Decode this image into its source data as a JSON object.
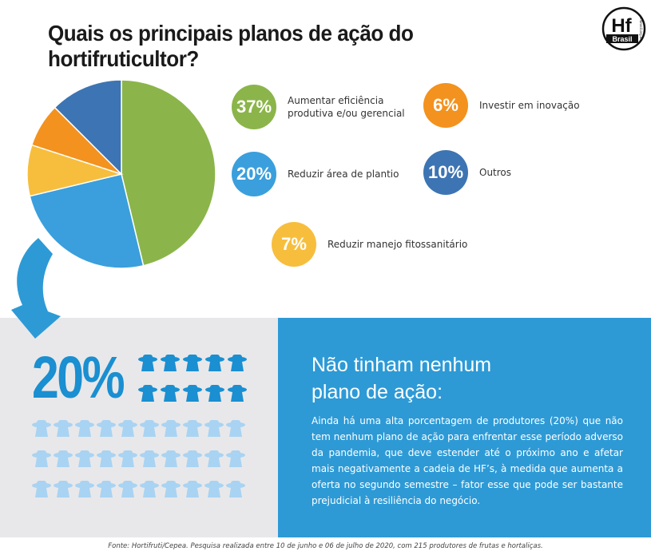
{
  "title": "Quais os principais planos de ação do hortifruticultor?",
  "logo": {
    "main": "Hf",
    "sub": "Brasil",
    "site": "hfbrasil.org.br"
  },
  "chart_data": {
    "type": "pie",
    "slices": [
      {
        "label": "Aumentar eficiência produtiva e/ou gerencial",
        "value": 37,
        "display": "37%",
        "color": "#8bb54a"
      },
      {
        "label": "Reduzir área de plantio",
        "value": 20,
        "display": "20%",
        "color": "#3a9fdc"
      },
      {
        "label": "Reduzir manejo fitossanitário",
        "value": 7,
        "display": "7%",
        "color": "#f7be3d"
      },
      {
        "label": "Investir em inovação",
        "value": 6,
        "display": "6%",
        "color": "#f3921e"
      },
      {
        "label": "Outros",
        "value": 10,
        "display": "10%",
        "color": "#3d74b3"
      }
    ]
  },
  "highlight": {
    "value": "20%",
    "heading_line1": "Não tinham nenhum",
    "heading_line2": "plano de ação:",
    "body": "Ainda há uma alta porcentagem de produtores (20%) que não tem nenhum plano de ação para enfrentar esse período adverso da pandemia, que deve estender até o próximo ano e afetar mais negativamente a cadeia de HF’s, à medida que aumenta a oferta no segundo semestre – fator esse que pode ser bastante prejudicial à resiliência do negócio.",
    "icons_total": 50,
    "icons_highlighted": 10,
    "icon_highlight_color": "#1a8fd1",
    "icon_muted_color": "#a9d3f2",
    "arrow_color": "#2d9ad6"
  },
  "footer": "Fonte: Hortifruti/Cepea. Pesquisa realizada entre 10 de junho e 06 de julho de 2020, com 215 produtores de frutas e hortaliças."
}
